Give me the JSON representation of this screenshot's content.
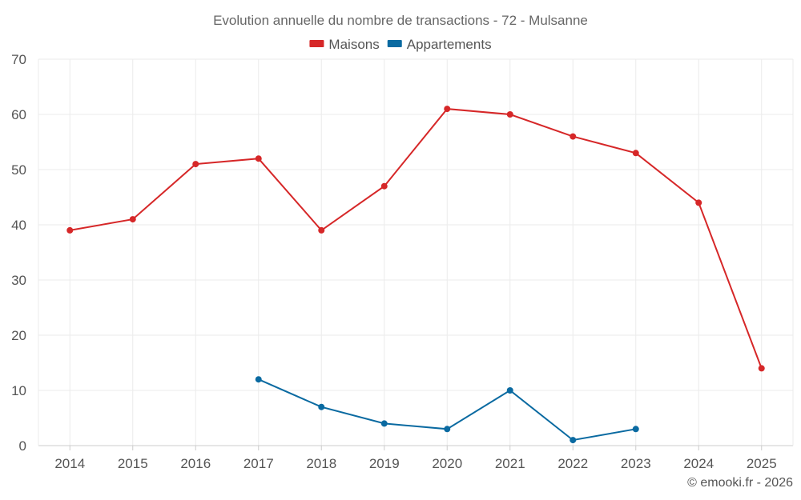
{
  "chart_data": {
    "type": "line",
    "title": "Evolution annuelle du nombre de transactions - 72 - Mulsanne",
    "categories": [
      "2014",
      "2015",
      "2016",
      "2017",
      "2018",
      "2019",
      "2020",
      "2021",
      "2022",
      "2023",
      "2024",
      "2025"
    ],
    "ylim": [
      0,
      70
    ],
    "yticks": [
      0,
      10,
      20,
      30,
      40,
      50,
      60,
      70
    ],
    "grid": true,
    "legend_position": "top-center",
    "series": [
      {
        "name": "Maisons",
        "color": "#d62728",
        "values": [
          39,
          41,
          51,
          52,
          39,
          47,
          61,
          60,
          56,
          53,
          44,
          14
        ]
      },
      {
        "name": "Appartements",
        "color": "#0a6aa1",
        "values": [
          null,
          null,
          null,
          12,
          7,
          4,
          3,
          10,
          1,
          3,
          null,
          null
        ]
      }
    ]
  },
  "credit": "© emooki.fr - 2026"
}
